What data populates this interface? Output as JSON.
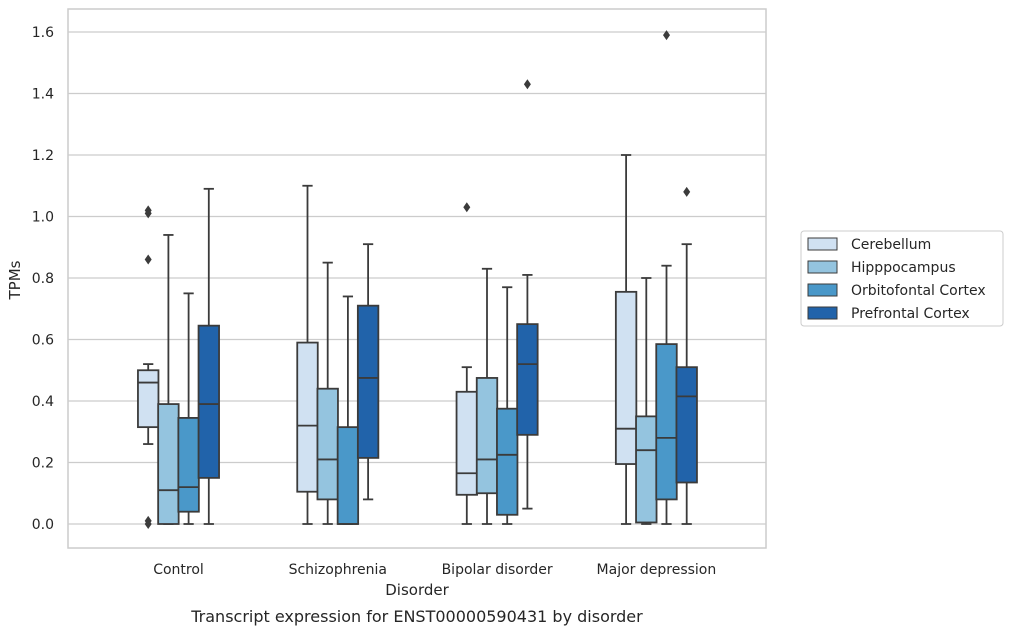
{
  "chart_data": {
    "type": "box",
    "categories": [
      "Control",
      "Schizophrenia",
      "Bipolar disorder",
      "Major depression"
    ],
    "xlabel": "Disorder",
    "ylabel": "TPMs",
    "caption": "Transcript expression for ENST00000590431 by disorder",
    "ylim": [
      -0.08,
      1.67
    ],
    "yticks": [
      "0.0",
      "0.2",
      "0.4",
      "0.6",
      "0.8",
      "1.0",
      "1.2",
      "1.4",
      "1.6"
    ],
    "grid": "horizontal",
    "legend_position": "right",
    "series": [
      {
        "name": "Cerebellum",
        "color": "#d0e1f2",
        "boxes": [
          {
            "whisker_low": 0.26,
            "q1": 0.315,
            "median": 0.46,
            "q3": 0.5,
            "whisker_high": 0.52,
            "outliers": [
              1.02,
              1.01,
              0.86,
              0.01,
              0.0
            ]
          },
          {
            "whisker_low": 0.0,
            "q1": 0.105,
            "median": 0.32,
            "q3": 0.59,
            "whisker_high": 1.1,
            "outliers": []
          },
          {
            "whisker_low": 0.0,
            "q1": 0.095,
            "median": 0.165,
            "q3": 0.43,
            "whisker_high": 0.51,
            "outliers": [
              1.03
            ]
          },
          {
            "whisker_low": 0.0,
            "q1": 0.195,
            "median": 0.31,
            "q3": 0.755,
            "whisker_high": 1.2,
            "outliers": []
          }
        ]
      },
      {
        "name": "Hipppocampus",
        "color": "#94c4df",
        "boxes": [
          {
            "whisker_low": 0.0,
            "q1": 0.0,
            "median": 0.11,
            "q3": 0.39,
            "whisker_high": 0.94,
            "outliers": []
          },
          {
            "whisker_low": 0.0,
            "q1": 0.08,
            "median": 0.21,
            "q3": 0.44,
            "whisker_high": 0.85,
            "outliers": []
          },
          {
            "whisker_low": 0.0,
            "q1": 0.1,
            "median": 0.21,
            "q3": 0.475,
            "whisker_high": 0.83,
            "outliers": []
          },
          {
            "whisker_low": 0.0,
            "q1": 0.005,
            "median": 0.24,
            "q3": 0.35,
            "whisker_high": 0.8,
            "outliers": []
          }
        ]
      },
      {
        "name": "Orbitofontal Cortex",
        "color": "#4a98c9",
        "boxes": [
          {
            "whisker_low": 0.0,
            "q1": 0.04,
            "median": 0.12,
            "q3": 0.345,
            "whisker_high": 0.75,
            "outliers": []
          },
          {
            "whisker_low": 0.0,
            "q1": 0.0,
            "median": 0.0,
            "q3": 0.315,
            "whisker_high": 0.74,
            "outliers": []
          },
          {
            "whisker_low": 0.0,
            "q1": 0.03,
            "median": 0.225,
            "q3": 0.375,
            "whisker_high": 0.77,
            "outliers": []
          },
          {
            "whisker_low": 0.0,
            "q1": 0.08,
            "median": 0.28,
            "q3": 0.585,
            "whisker_high": 0.84,
            "outliers": [
              1.59
            ]
          }
        ]
      },
      {
        "name": "Prefrontal Cortex",
        "color": "#2163aa",
        "boxes": [
          {
            "whisker_low": 0.0,
            "q1": 0.15,
            "median": 0.39,
            "q3": 0.645,
            "whisker_high": 1.09,
            "outliers": []
          },
          {
            "whisker_low": 0.08,
            "q1": 0.215,
            "median": 0.475,
            "q3": 0.71,
            "whisker_high": 0.91,
            "outliers": []
          },
          {
            "whisker_low": 0.05,
            "q1": 0.29,
            "median": 0.52,
            "q3": 0.65,
            "whisker_high": 0.81,
            "outliers": [
              1.43
            ]
          },
          {
            "whisker_low": 0.0,
            "q1": 0.135,
            "median": 0.415,
            "q3": 0.51,
            "whisker_high": 0.91,
            "outliers": [
              1.08
            ]
          }
        ]
      }
    ]
  },
  "colors": {
    "grid": "#cccccc",
    "frame": "#cccccc",
    "box_edge": "#3b3b3b",
    "text": "#262626"
  }
}
